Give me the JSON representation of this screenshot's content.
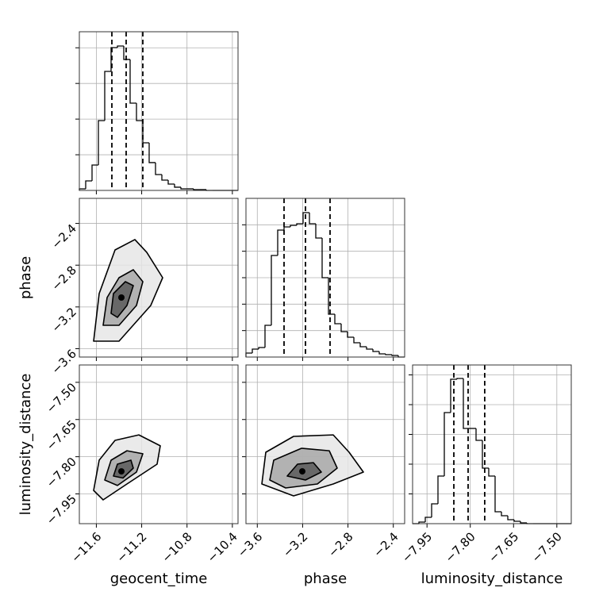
{
  "chart_data": {
    "type": "corner",
    "grid": true,
    "color": "#000000",
    "contour_fills": [
      "#e6e6e6",
      "#a8a8a8",
      "#5a5a5a"
    ],
    "parameters": [
      {
        "label": "geocent_time",
        "xlim": [
          -11.75,
          -10.35
        ],
        "ticks": [
          {
            "value": -11.6,
            "label": "−11.6"
          },
          {
            "value": -11.2,
            "label": "−11.2"
          },
          {
            "value": -10.8,
            "label": "−10.8"
          },
          {
            "value": -10.4,
            "label": "−10.4"
          }
        ],
        "histogram": {
          "bins": [
            -11.75,
            -11.694,
            -11.638,
            -11.582,
            -11.526,
            -11.47,
            -11.414,
            -11.358,
            -11.302,
            -11.246,
            -11.19,
            -11.134,
            -11.078,
            -11.022,
            -10.966,
            -10.91,
            -10.854,
            -10.798,
            -10.742,
            -10.686,
            -10.63,
            -10.574,
            -10.518,
            -10.462,
            -10.406,
            -10.35
          ],
          "counts": [
            18,
            107,
            285,
            783,
            1335,
            1602,
            1620,
            1469,
            979,
            783,
            534,
            312,
            178,
            116,
            71,
            36,
            18,
            18,
            9,
            9,
            0,
            0,
            0,
            0,
            0
          ],
          "quantiles": [
            -11.463,
            -11.337,
            -11.19
          ],
          "ylim": [
            0,
            1780
          ],
          "yticks": [
            400,
            800,
            1200,
            1600
          ]
        },
        "contours": []
      },
      {
        "label": "phase",
        "xlim": [
          -3.7,
          -2.3
        ],
        "ylim": [
          -3.68,
          -2.16
        ],
        "ticks": [
          {
            "value": -3.6,
            "label": "−3.6"
          },
          {
            "value": -3.2,
            "label": "−3.2"
          },
          {
            "value": -2.8,
            "label": "−2.8"
          },
          {
            "value": -2.4,
            "label": "−2.4"
          }
        ],
        "histogram": {
          "bins": [
            -3.7,
            -3.644,
            -3.588,
            -3.532,
            -3.476,
            -3.42,
            -3.364,
            -3.308,
            -3.252,
            -3.196,
            -3.14,
            -3.084,
            -3.028,
            -2.972,
            -2.916,
            -2.86,
            -2.804,
            -2.748,
            -2.692,
            -2.636,
            -2.58,
            -2.524,
            -2.468,
            -2.412,
            -2.356,
            -2.3
          ],
          "counts": [
            30,
            60,
            72,
            240,
            768,
            960,
            984,
            996,
            1008,
            1092,
            1008,
            900,
            600,
            324,
            252,
            192,
            150,
            108,
            78,
            60,
            42,
            24,
            18,
            12,
            0
          ],
          "quantiles": [
            -3.364,
            -3.175,
            -2.958
          ],
          "ylim": [
            0,
            1200
          ],
          "yticks": [
            200,
            400,
            600,
            800,
            1000
          ]
        },
        "contours": [
          {
            "levels": [
              {
                "x": [
                  -11.624,
                  -11.575,
                  -11.435,
                  -11.26,
                  -11.155,
                  -11.015,
                  -11.12,
                  -11.4
                ],
                "y": [
                  -3.528,
                  -3.072,
                  -2.654,
                  -2.555,
                  -2.677,
                  -2.92,
                  -3.186,
                  -3.528
                ]
              },
              {
                "x": [
                  -11.54,
                  -11.505,
                  -11.4,
                  -11.274,
                  -11.19,
                  -11.246,
                  -11.4
                ],
                "y": [
                  -3.376,
                  -3.11,
                  -2.92,
                  -2.844,
                  -2.958,
                  -3.186,
                  -3.376
                ]
              },
              {
                "x": [
                  -11.47,
                  -11.449,
                  -11.344,
                  -11.274,
                  -11.33,
                  -11.414
                ],
                "y": [
                  -3.262,
                  -3.072,
                  -2.958,
                  -2.996,
                  -3.186,
                  -3.3
                ]
              }
            ],
            "peak": {
              "x": -11.379,
              "y": -3.11
            }
          }
        ]
      },
      {
        "label": "luminosity_distance",
        "xlim": [
          -8.0,
          -7.45
        ],
        "ylim": [
          -8.07,
          -7.43
        ],
        "ticks": [
          {
            "value": -7.95,
            "label": "−7.95"
          },
          {
            "value": -7.8,
            "label": "−7.80"
          },
          {
            "value": -7.65,
            "label": "−7.65"
          },
          {
            "value": -7.5,
            "label": "−7.50"
          }
        ],
        "histogram": {
          "bins": [
            -8.0,
            -7.978,
            -7.956,
            -7.934,
            -7.912,
            -7.89,
            -7.868,
            -7.846,
            -7.824,
            -7.802,
            -7.78,
            -7.758,
            -7.736,
            -7.714,
            -7.692,
            -7.67,
            -7.648,
            -7.626,
            -7.604,
            -7.582,
            -7.56,
            -7.538,
            -7.516,
            -7.494,
            -7.472,
            -7.45
          ],
          "counts": [
            0,
            16,
            64,
            200,
            480,
            1120,
            1456,
            1464,
            960,
            960,
            840,
            560,
            480,
            120,
            80,
            40,
            24,
            8,
            0,
            0,
            0,
            0,
            0,
            0,
            0
          ],
          "quantiles": [
            -7.857,
            -7.8075,
            -7.75
          ],
          "ylim": [
            0,
            1600
          ],
          "yticks": [
            300,
            600,
            900,
            1200,
            1500
          ]
        },
        "contours": [
          {
            "levels": [
              {
                "x": [
                  -11.624,
                  -11.575,
                  -11.435,
                  -11.225,
                  -11.036,
                  -11.064,
                  -11.33,
                  -11.54
                ],
                "y": [
                  -7.936,
                  -7.814,
                  -7.734,
                  -7.712,
                  -7.756,
                  -7.83,
                  -7.91,
                  -7.974
                ]
              },
              {
                "x": [
                  -11.526,
                  -11.47,
                  -11.33,
                  -11.19,
                  -11.246,
                  -11.414
                ],
                "y": [
                  -7.894,
                  -7.814,
                  -7.776,
                  -7.788,
                  -7.862,
                  -7.916
                ]
              },
              {
                "x": [
                  -11.449,
                  -11.414,
                  -11.295,
                  -11.274,
                  -11.365
                ],
                "y": [
                  -7.878,
                  -7.83,
                  -7.814,
                  -7.846,
                  -7.886
                ]
              }
            ],
            "peak": {
              "x": -11.379,
              "y": -7.859
            }
          },
          {
            "levels": [
              {
                "x": [
                  -3.56,
                  -3.525,
                  -3.28,
                  -2.93,
                  -2.79,
                  -2.664,
                  -2.93,
                  -3.28
                ],
                "y": [
                  -7.91,
                  -7.782,
                  -7.718,
                  -7.712,
                  -7.782,
                  -7.862,
                  -7.91,
                  -7.958
                ]
              },
              {
                "x": [
                  -3.49,
                  -3.455,
                  -3.21,
                  -2.965,
                  -2.895,
                  -3.07,
                  -3.35
                ],
                "y": [
                  -7.894,
                  -7.814,
                  -7.766,
                  -7.776,
                  -7.846,
                  -7.91,
                  -7.926
                ]
              },
              {
                "x": [
                  -3.336,
                  -3.245,
                  -3.105,
                  -3.035,
                  -3.175
                ],
                "y": [
                  -7.878,
                  -7.83,
                  -7.824,
                  -7.862,
                  -7.894
                ]
              }
            ],
            "peak": {
              "x": -3.203,
              "y": -7.859
            }
          }
        ]
      }
    ]
  }
}
